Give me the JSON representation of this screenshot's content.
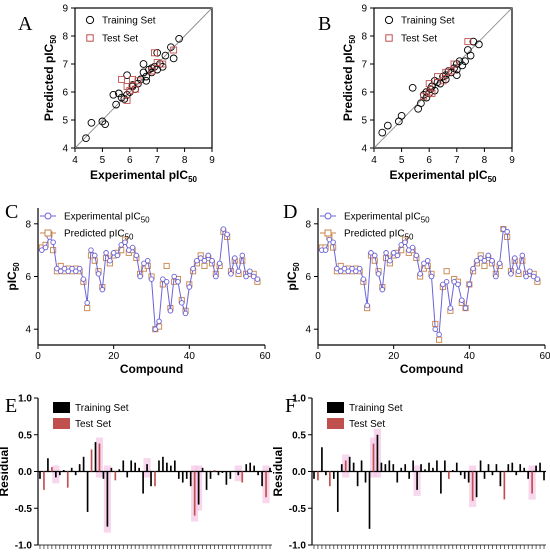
{
  "colors": {
    "training": "#000000",
    "test": "#c0504d",
    "experimental": "#6b63d9",
    "predicted": "#c8834a",
    "identity": "#8c8c8c",
    "residual_shade": "#f4c8e8"
  },
  "chart_data": [
    {
      "panel": "A",
      "type": "scatter",
      "xlabel": "Experimental pIC",
      "xlabel_sub": "50",
      "ylabel": "Predicted pIC",
      "ylabel_sub": "50",
      "xlim": [
        4,
        9
      ],
      "ylim": [
        4,
        9
      ],
      "xticks": [
        "4",
        "5",
        "6",
        "7",
        "8",
        "9"
      ],
      "yticks": [
        "4",
        "5",
        "6",
        "7",
        "8",
        "9"
      ],
      "identity_line": true,
      "series": [
        {
          "name": "Training Set",
          "marker": "circle",
          "points": [
            [
              4.4,
              4.35
            ],
            [
              4.6,
              4.9
            ],
            [
              5.0,
              4.95
            ],
            [
              5.1,
              4.85
            ],
            [
              5.4,
              5.9
            ],
            [
              5.6,
              5.95
            ],
            [
              5.7,
              5.8
            ],
            [
              5.8,
              5.75
            ],
            [
              5.9,
              5.9
            ],
            [
              6.0,
              6.0
            ],
            [
              6.1,
              6.2
            ],
            [
              6.2,
              6.1
            ],
            [
              6.3,
              6.3
            ],
            [
              6.4,
              6.45
            ],
            [
              6.5,
              7.0
            ],
            [
              6.5,
              6.7
            ],
            [
              6.6,
              6.55
            ],
            [
              6.7,
              6.8
            ],
            [
              6.8,
              6.7
            ],
            [
              6.9,
              6.9
            ],
            [
              7.0,
              6.8
            ],
            [
              7.1,
              7.0
            ],
            [
              7.2,
              6.9
            ],
            [
              7.3,
              7.3
            ],
            [
              7.5,
              7.6
            ],
            [
              7.6,
              7.2
            ],
            [
              7.8,
              7.9
            ],
            [
              5.9,
              6.6
            ],
            [
              6.1,
              6.25
            ],
            [
              6.6,
              6.4
            ],
            [
              7.0,
              7.4
            ],
            [
              5.5,
              5.55
            ],
            [
              6.8,
              6.85
            ]
          ]
        },
        {
          "name": "Test Set",
          "marker": "square",
          "points": [
            [
              5.7,
              6.45
            ],
            [
              5.9,
              6.2
            ],
            [
              6.0,
              6.05
            ],
            [
              6.1,
              6.45
            ],
            [
              6.3,
              6.4
            ],
            [
              6.8,
              6.75
            ],
            [
              6.9,
              7.4
            ],
            [
              7.0,
              7.05
            ],
            [
              7.2,
              7.0
            ],
            [
              7.6,
              7.5
            ],
            [
              5.9,
              5.7
            ],
            [
              6.2,
              6.1
            ]
          ]
        }
      ]
    },
    {
      "panel": "B",
      "type": "scatter",
      "xlabel": "Experimental pIC",
      "xlabel_sub": "50",
      "ylabel": "Predicted pIC",
      "ylabel_sub": "50",
      "xlim": [
        4,
        9
      ],
      "ylim": [
        4,
        9
      ],
      "xticks": [
        "4",
        "5",
        "6",
        "7",
        "8",
        "9"
      ],
      "yticks": [
        "4",
        "5",
        "6",
        "7",
        "8",
        "9"
      ],
      "identity_line": true,
      "series": [
        {
          "name": "Training Set",
          "marker": "circle",
          "points": [
            [
              4.3,
              4.55
            ],
            [
              4.5,
              4.8
            ],
            [
              4.9,
              4.95
            ],
            [
              5.0,
              5.15
            ],
            [
              5.4,
              6.15
            ],
            [
              5.6,
              5.4
            ],
            [
              5.7,
              5.6
            ],
            [
              5.8,
              5.9
            ],
            [
              5.9,
              6.0
            ],
            [
              6.0,
              5.95
            ],
            [
              6.05,
              6.1
            ],
            [
              6.1,
              6.2
            ],
            [
              6.2,
              6.05
            ],
            [
              6.3,
              6.35
            ],
            [
              6.4,
              6.3
            ],
            [
              6.5,
              6.55
            ],
            [
              6.6,
              6.6
            ],
            [
              6.7,
              6.75
            ],
            [
              6.8,
              6.7
            ],
            [
              6.9,
              6.85
            ],
            [
              7.0,
              7.0
            ],
            [
              7.0,
              6.8
            ],
            [
              7.1,
              7.1
            ],
            [
              7.2,
              6.95
            ],
            [
              7.3,
              7.1
            ],
            [
              7.4,
              7.5
            ],
            [
              7.5,
              7.3
            ],
            [
              7.6,
              7.8
            ],
            [
              7.8,
              7.7
            ],
            [
              5.9,
              5.8
            ],
            [
              6.2,
              6.4
            ],
            [
              6.6,
              6.45
            ],
            [
              7.0,
              6.6
            ]
          ]
        },
        {
          "name": "Test Set",
          "marker": "square",
          "points": [
            [
              5.8,
              5.85
            ],
            [
              6.0,
              6.3
            ],
            [
              6.1,
              5.95
            ],
            [
              6.3,
              6.55
            ],
            [
              6.5,
              6.4
            ],
            [
              6.8,
              6.75
            ],
            [
              6.9,
              7.0
            ],
            [
              7.4,
              7.8
            ],
            [
              6.0,
              6.0
            ],
            [
              6.6,
              6.7
            ]
          ]
        }
      ]
    },
    {
      "panel": "C",
      "type": "line",
      "xlabel": "Compound",
      "ylabel": "pIC",
      "ylabel_sub": "50",
      "xlim": [
        0,
        60
      ],
      "ylim": [
        3.4,
        8.6
      ],
      "xticks": [
        "0",
        "20",
        "40",
        "60"
      ],
      "yticks": [
        "4",
        "6",
        "8"
      ],
      "x": [
        1,
        2,
        3,
        4,
        5,
        6,
        7,
        8,
        9,
        10,
        11,
        12,
        13,
        14,
        15,
        16,
        17,
        18,
        19,
        20,
        21,
        22,
        23,
        24,
        25,
        26,
        27,
        28,
        29,
        30,
        31,
        32,
        33,
        34,
        35,
        36,
        37,
        38,
        39,
        40,
        41,
        42,
        43,
        44,
        45,
        46,
        47,
        48,
        49,
        50,
        51,
        52,
        53,
        54,
        55,
        56,
        57,
        58
      ],
      "series": [
        {
          "name": "Experimental pIC",
          "name_sub": "50",
          "values": [
            7.0,
            7.1,
            7.5,
            7.3,
            6.3,
            6.2,
            6.3,
            6.2,
            6.3,
            6.2,
            6.3,
            5.9,
            5.0,
            7.0,
            6.8,
            6.1,
            5.5,
            6.9,
            6.6,
            6.9,
            6.8,
            7.2,
            7.3,
            7.0,
            7.1,
            6.8,
            6.0,
            6.5,
            6.6,
            5.9,
            4.0,
            4.3,
            5.9,
            5.8,
            4.7,
            6.0,
            5.8,
            5.0,
            4.6,
            5.6,
            6.3,
            6.6,
            6.7,
            6.6,
            6.8,
            6.6,
            6.0,
            6.5,
            7.8,
            7.6,
            6.1,
            6.7,
            6.2,
            6.8,
            6.0,
            6.2,
            6.0,
            5.9
          ]
        },
        {
          "name": "Predicted pIC",
          "name_sub": "50",
          "values": [
            7.1,
            7.2,
            7.6,
            7.0,
            6.2,
            6.4,
            6.2,
            6.3,
            6.2,
            6.3,
            6.2,
            5.8,
            4.8,
            6.8,
            6.6,
            6.2,
            5.6,
            6.7,
            6.5,
            6.8,
            6.9,
            7.0,
            7.4,
            6.9,
            7.0,
            6.7,
            6.1,
            6.3,
            6.4,
            6.0,
            4.0,
            4.1,
            5.7,
            6.4,
            4.8,
            5.8,
            5.9,
            5.1,
            4.7,
            5.7,
            6.2,
            6.5,
            6.8,
            6.4,
            6.7,
            6.5,
            6.1,
            6.4,
            7.7,
            7.5,
            6.2,
            6.6,
            6.1,
            6.6,
            6.1,
            6.1,
            6.1,
            5.8
          ]
        }
      ]
    },
    {
      "panel": "D",
      "type": "line",
      "xlabel": "Compound",
      "ylabel": "pIC",
      "ylabel_sub": "50",
      "xlim": [
        0,
        60
      ],
      "ylim": [
        3.4,
        8.6
      ],
      "xticks": [
        "0",
        "20",
        "40",
        "60"
      ],
      "yticks": [
        "4",
        "6",
        "8"
      ],
      "x": [
        1,
        2,
        3,
        4,
        5,
        6,
        7,
        8,
        9,
        10,
        11,
        12,
        13,
        14,
        15,
        16,
        17,
        18,
        19,
        20,
        21,
        22,
        23,
        24,
        25,
        26,
        27,
        28,
        29,
        30,
        31,
        32,
        33,
        34,
        35,
        36,
        37,
        38,
        39,
        40,
        41,
        42,
        43,
        44,
        45,
        46,
        47,
        48,
        49,
        50,
        51,
        52,
        53,
        54,
        55,
        56,
        57,
        58
      ],
      "series": [
        {
          "name": "Experimental pIC",
          "name_sub": "50",
          "values": [
            7.0,
            7.0,
            7.4,
            7.3,
            6.3,
            6.2,
            6.3,
            6.2,
            6.3,
            6.2,
            6.3,
            5.9,
            4.9,
            6.9,
            6.8,
            6.1,
            5.5,
            6.9,
            6.6,
            6.9,
            6.8,
            7.2,
            7.3,
            7.0,
            7.1,
            6.8,
            6.1,
            6.5,
            6.6,
            6.0,
            4.0,
            3.8,
            5.7,
            5.8,
            4.8,
            5.8,
            5.7,
            5.1,
            4.8,
            5.7,
            6.3,
            6.6,
            6.7,
            6.6,
            6.8,
            6.6,
            6.0,
            6.5,
            7.8,
            7.7,
            6.1,
            6.7,
            6.2,
            6.8,
            6.0,
            6.2,
            6.0,
            5.9
          ]
        },
        {
          "name": "Predicted pIC",
          "name_sub": "50",
          "values": [
            7.1,
            7.1,
            7.5,
            7.1,
            6.2,
            6.4,
            6.2,
            6.3,
            6.2,
            6.3,
            6.2,
            5.8,
            4.8,
            6.8,
            6.6,
            6.2,
            5.6,
            6.7,
            6.5,
            6.8,
            6.9,
            7.0,
            7.4,
            6.9,
            7.0,
            6.7,
            6.0,
            6.3,
            6.4,
            6.1,
            4.2,
            3.6,
            5.6,
            6.2,
            4.7,
            5.9,
            5.8,
            5.0,
            4.8,
            5.7,
            6.2,
            6.5,
            6.8,
            6.4,
            6.7,
            6.5,
            6.1,
            6.4,
            7.8,
            7.5,
            6.2,
            6.6,
            6.1,
            6.6,
            6.1,
            6.1,
            6.1,
            5.8
          ]
        }
      ]
    },
    {
      "panel": "E",
      "type": "bar",
      "ylabel": "Residual",
      "ylim": [
        -1.0,
        1.0
      ],
      "yticks": [
        "1.0",
        "0.5",
        "0.0",
        "-0.5",
        "-1.0"
      ],
      "legend": [
        "Training Set",
        "Test Set"
      ],
      "series_index": [
        0,
        1,
        0,
        1,
        0,
        0,
        0,
        1,
        0,
        0,
        0,
        0,
        0,
        1,
        0,
        1,
        0,
        0,
        0,
        1,
        0,
        0,
        0,
        0,
        0,
        0,
        0,
        0,
        0,
        1,
        0,
        0,
        0,
        0,
        0,
        0,
        0,
        0,
        0,
        1,
        0,
        0,
        0,
        0,
        1,
        0,
        0,
        0,
        0,
        0,
        0,
        1,
        0,
        0,
        0,
        0,
        0,
        1,
        0
      ],
      "values": [
        -0.1,
        -0.25,
        0.18,
        0.06,
        -0.08,
        -0.05,
        0.02,
        -0.22,
        0.05,
        -0.05,
        0.1,
        0.2,
        -0.55,
        0.3,
        0.4,
        0.38,
        -0.1,
        -0.75,
        0.05,
        -0.12,
        0.03,
        0.15,
        -0.08,
        0.15,
        0.12,
        0.05,
        -0.3,
        0.1,
        -0.2,
        -0.2,
        0.15,
        0.2,
        0.12,
        0.08,
        0.15,
        -0.1,
        -0.15,
        -0.1,
        -0.2,
        -0.6,
        -0.45,
        0.05,
        -0.25,
        -0.1,
        0.02,
        -0.05,
        -0.02,
        -0.18,
        -0.1,
        0.0,
        -0.05,
        -0.15,
        0.1,
        0.12,
        0.08,
        -0.05,
        -0.2,
        -0.35,
        0.05
      ],
      "shade": [
        0,
        0,
        0,
        0,
        1,
        0,
        0,
        0,
        0,
        0,
        0,
        0,
        0,
        0,
        0,
        1,
        0,
        1,
        0,
        0,
        0,
        0,
        0,
        0,
        0,
        0,
        0,
        1,
        0,
        0,
        0,
        0,
        0,
        0,
        0,
        0,
        0,
        0,
        0,
        1,
        1,
        0,
        0,
        0,
        0,
        0,
        0,
        0,
        0,
        0,
        1,
        0,
        0,
        0,
        0,
        0,
        0,
        1,
        0
      ]
    },
    {
      "panel": "F",
      "type": "bar",
      "ylabel": "Residual",
      "ylim": [
        -1.0,
        1.0
      ],
      "yticks": [
        "1.0",
        "0.5",
        "0.0",
        "-0.5",
        "-1.0"
      ],
      "legend": [
        "Training Set",
        "Test Set"
      ],
      "series_index": [
        0,
        1,
        0,
        0,
        1,
        0,
        0,
        0,
        1,
        0,
        0,
        0,
        0,
        0,
        0,
        1,
        0,
        0,
        0,
        0,
        0,
        0,
        0,
        0,
        0,
        0,
        0,
        0,
        0,
        0,
        0,
        0,
        0,
        0,
        1,
        0,
        0,
        0,
        0,
        0,
        1,
        0,
        0,
        0,
        0,
        0,
        0,
        0,
        1,
        0,
        0,
        0,
        0,
        0,
        0,
        1,
        0,
        0,
        0
      ],
      "values": [
        -0.1,
        -0.12,
        0.33,
        -0.05,
        -0.2,
        -0.1,
        -0.55,
        0.1,
        0.15,
        0.2,
        0.12,
        -0.2,
        0.15,
        -0.15,
        -0.78,
        0.38,
        0.5,
        0.12,
        0.1,
        0.15,
        0.1,
        -0.15,
        0.05,
        0.1,
        -0.1,
        0.15,
        -0.25,
        0.1,
        0.03,
        0.12,
        0.05,
        0.15,
        -0.3,
        0.15,
        -0.1,
        0.02,
        0.12,
        -0.05,
        -0.1,
        -0.15,
        -0.4,
        -0.35,
        0.15,
        -0.1,
        0.1,
        -0.05,
        0.1,
        -0.2,
        -0.38,
        0.1,
        0.12,
        -0.05,
        0.1,
        0.05,
        -0.1,
        -0.3,
        0.08,
        0.12,
        -0.12
      ],
      "shade": [
        0,
        0,
        0,
        0,
        0,
        0,
        0,
        0,
        1,
        0,
        0,
        0,
        0,
        0,
        0,
        1,
        1,
        0,
        0,
        0,
        0,
        0,
        0,
        0,
        0,
        0,
        1,
        0,
        0,
        0,
        0,
        0,
        0,
        0,
        0,
        0,
        0,
        0,
        0,
        0,
        1,
        0,
        0,
        0,
        0,
        0,
        0,
        0,
        0,
        0,
        0,
        0,
        0,
        0,
        0,
        1,
        0,
        0,
        0
      ]
    }
  ]
}
